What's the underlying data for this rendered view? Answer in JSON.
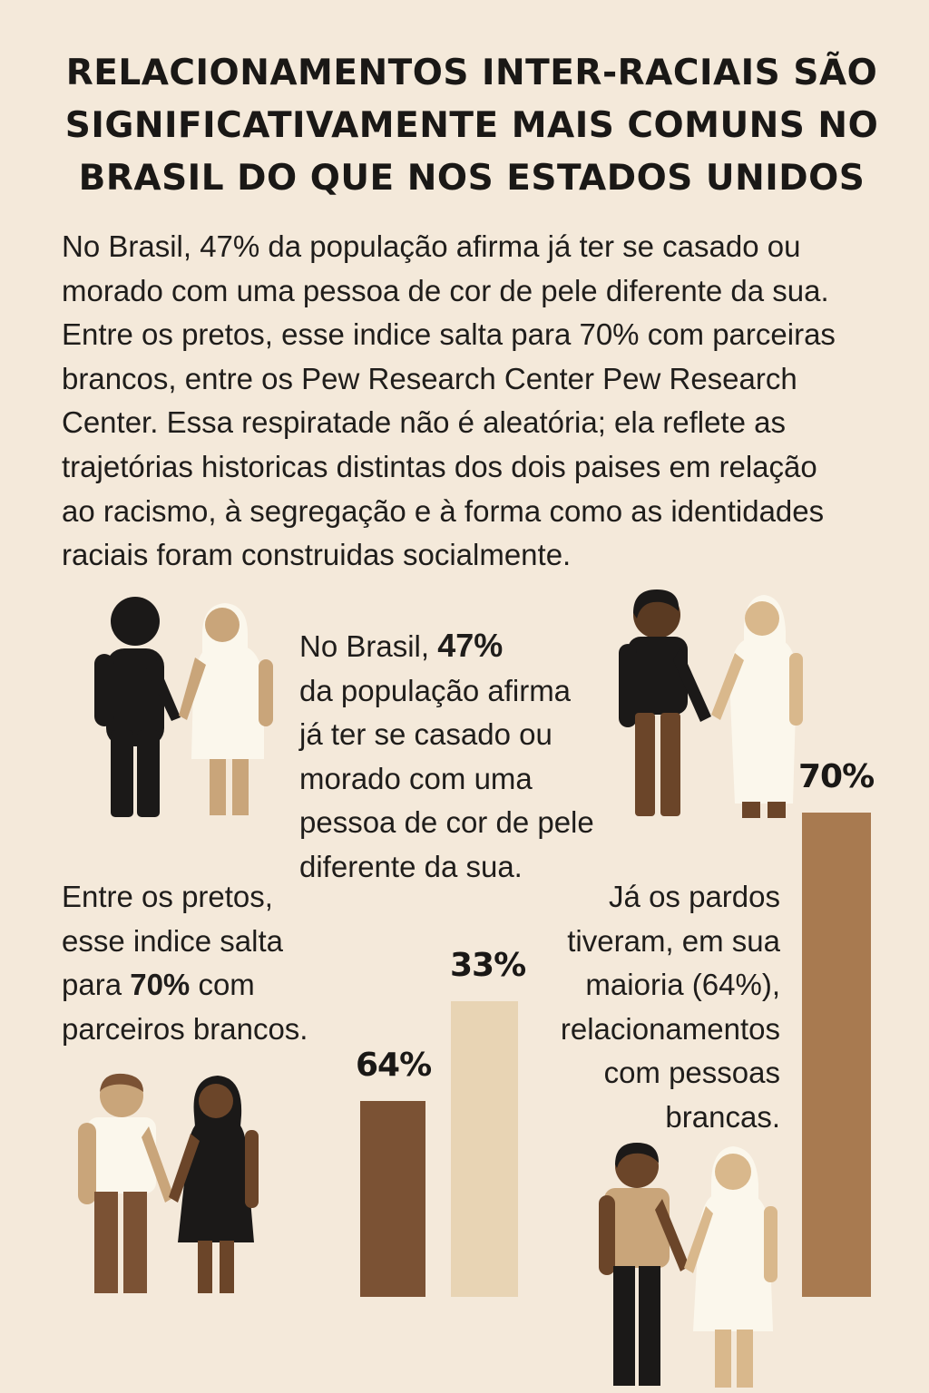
{
  "title_lines": [
    "RELACIONAMENTOS INTER-RACIAIS SÃO",
    "SIGNIFICATIVAMENTE MAIS COMUNS NO",
    "BRASIL DO QUE NOS ESTADOS UNIDOS"
  ],
  "intro_lines": [
    "No Brasil, 47% da população afirma já ter se casado ou",
    "morado com uma pessoa de cor de pele diferente da sua.",
    "Entre os pretos, esse indice salta para 70% com parceiras",
    "brancos, entre os Pew Research Center Pew Research",
    "Center. Essa respiratade não é aleatória; ela reflete as",
    "trajetórias historicas distintas dos dois paises em relação",
    "ao racismo, à segregação e à forma como as identidades",
    "raciais foram construidas socialmente."
  ],
  "blurb_brasil": {
    "l1_pre": "No Brasil, ",
    "l1_bold": "47%",
    "rest": [
      "da população afirma",
      "já ter se casado ou",
      "morado com uma",
      "pessoa de cor de pele",
      "diferente da sua."
    ]
  },
  "blurb_pretos": {
    "l1": "Entre os pretos,",
    "l2": "esse indice salta",
    "l3_pre": "para ",
    "l3_bold": "70%",
    "l3_post": " com",
    "l4": "parceiros brancos."
  },
  "blurb_pardos": {
    "lines": [
      "Já os pardos",
      "tiveram, em sua",
      "maioria (64%),",
      "relacionamentos",
      "com pessoas",
      "brancas."
    ]
  },
  "chart_data": {
    "type": "bar",
    "categories": [
      "",
      "",
      ""
    ],
    "values": [
      64,
      33,
      70
    ],
    "value_labels": [
      "64%",
      "33%",
      "70%"
    ],
    "colors": [
      "#7b5234",
      "#e8d4b4",
      "#a87a50"
    ],
    "ylim": [
      0,
      70
    ],
    "grid": false
  },
  "colors": {
    "background": "#f4e9da",
    "text": "#1c1a18",
    "skin_black": "#1b1918",
    "skin_white": "#fbf7ec",
    "skin_tan": "#c9a57a",
    "skin_brown": "#6b4529",
    "skin_light_tan": "#d9b88c"
  },
  "icons": [
    "couple-icon-top-left",
    "couple-icon-top-right",
    "couple-icon-bottom-left",
    "couple-icon-bottom-right"
  ]
}
